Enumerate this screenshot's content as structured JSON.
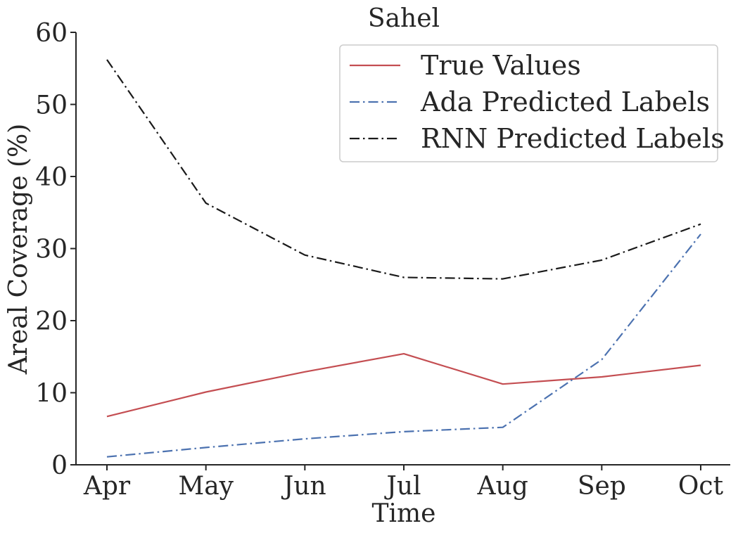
{
  "chart_data": {
    "type": "line",
    "title": "Sahel",
    "xlabel": "Time",
    "ylabel": "Areal Coverage (%)",
    "categories": [
      "Apr",
      "May",
      "Jun",
      "Jul",
      "Aug",
      "Sep",
      "Oct"
    ],
    "ylim": [
      0,
      60
    ],
    "yticks": [
      0,
      10,
      20,
      30,
      40,
      50,
      60
    ],
    "grid": false,
    "legend_position": "top-right",
    "series": [
      {
        "name": "True Values",
        "values": [
          6.7,
          10.1,
          12.9,
          15.4,
          11.2,
          12.2,
          13.8
        ],
        "color": "#c44e52",
        "style": "solid"
      },
      {
        "name": "Ada Predicted Labels",
        "values": [
          1.1,
          2.4,
          3.6,
          4.6,
          5.2,
          14.6,
          32.0
        ],
        "color": "#4c72b0",
        "style": "dashdot"
      },
      {
        "name": "RNN Predicted Labels",
        "values": [
          56.2,
          36.3,
          29.1,
          26.0,
          25.8,
          28.4,
          33.4
        ],
        "color": "#1a1a1a",
        "style": "dashdot"
      }
    ]
  }
}
